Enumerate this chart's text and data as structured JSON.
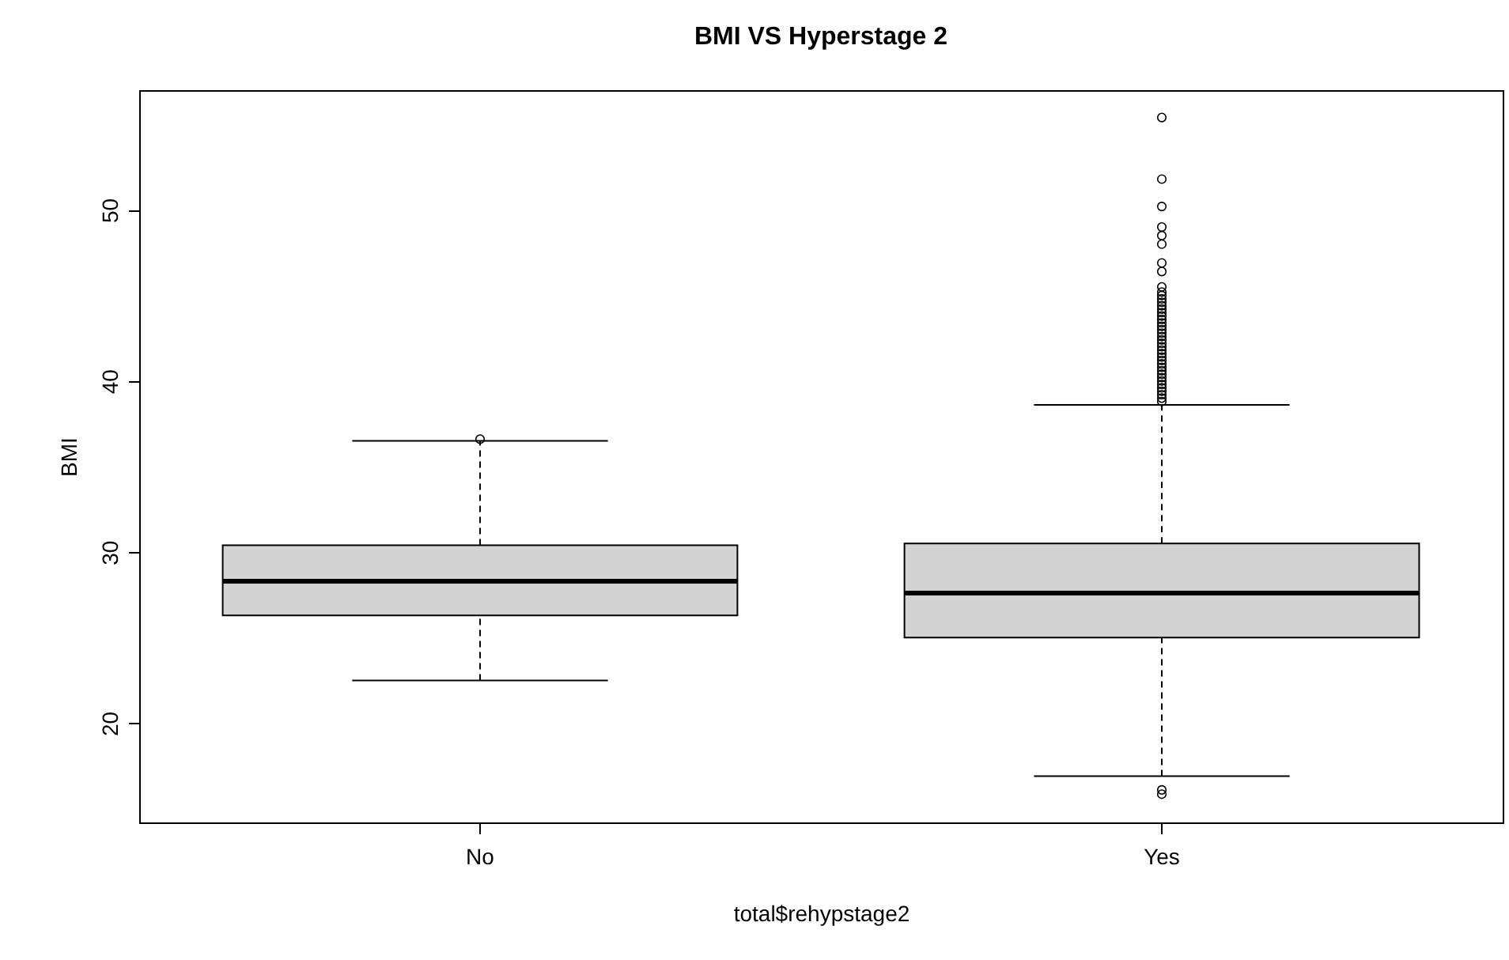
{
  "chart_data": {
    "type": "box",
    "title": "BMI VS Hyperstage 2",
    "xlabel": "total$rehypstage2",
    "ylabel": "BMI",
    "categories": [
      "No",
      "Yes"
    ],
    "boxes": [
      {
        "low": 22.5,
        "q1": 26.3,
        "median": 28.3,
        "q3": 30.4,
        "high": 36.5,
        "outliers": [
          36.6
        ]
      },
      {
        "low": 16.9,
        "q1": 25.0,
        "median": 27.6,
        "q3": 30.5,
        "high": 38.6,
        "outliers": [
          55.4,
          51.8,
          50.2,
          49.0,
          48.5,
          48.0,
          46.9,
          46.4,
          45.5,
          45.2,
          45.0,
          44.8,
          44.6,
          44.4,
          44.2,
          44.0,
          43.8,
          43.6,
          43.4,
          43.2,
          43.0,
          42.8,
          42.6,
          42.4,
          42.2,
          42.0,
          41.8,
          41.6,
          41.4,
          41.2,
          41.0,
          40.8,
          40.6,
          40.4,
          40.2,
          40.0,
          39.8,
          39.6,
          39.4,
          39.2,
          39.0,
          38.8,
          16.1,
          15.85
        ]
      }
    ],
    "ylim": [
      14.2,
      57.0
    ],
    "yticks": [
      20,
      30,
      40,
      50
    ],
    "grid": false
  }
}
